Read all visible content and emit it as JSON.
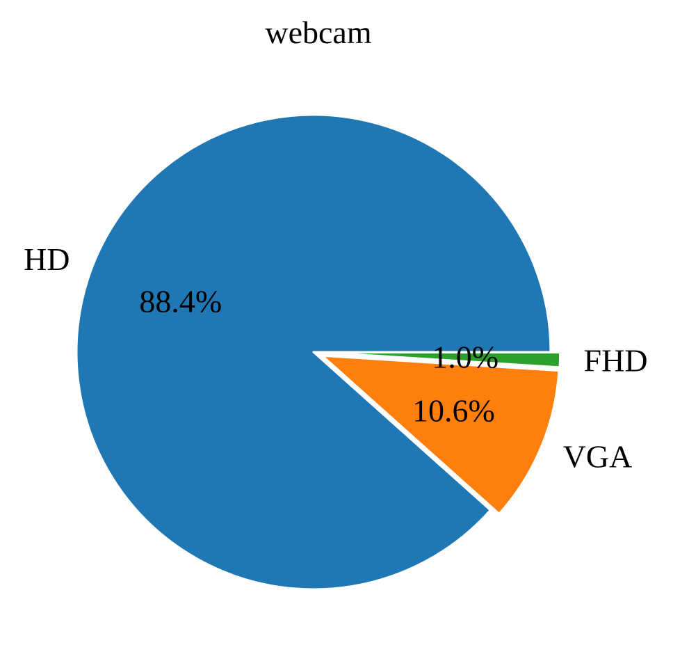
{
  "chart_data": {
    "type": "pie",
    "title": "webcam",
    "slices": [
      {
        "label": "HD",
        "value": 88.4,
        "pct_label": "88.4%",
        "color": "#1f77b4",
        "explode": false
      },
      {
        "label": "VGA",
        "value": 10.6,
        "pct_label": "10.6%",
        "color": "#ff7f0e",
        "explode": true
      },
      {
        "label": "FHD",
        "value": 1.0,
        "pct_label": "1.0%",
        "color": "#2ca02c",
        "explode": true
      }
    ],
    "start_angle_deg": 0,
    "direction": "counterclockwise",
    "edge_color": "#ffffff"
  }
}
